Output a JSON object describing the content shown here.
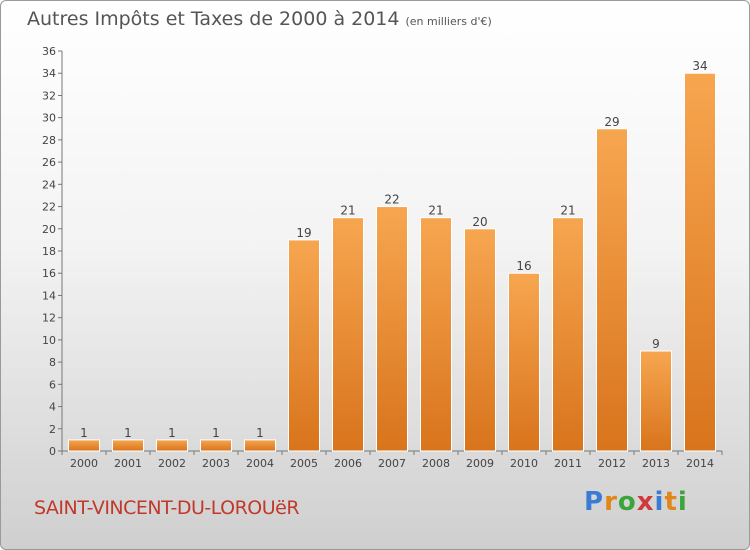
{
  "header": {
    "title": "Autres Impôts et Taxes de 2000 à 2014",
    "subtitle": "(en milliers d'€)"
  },
  "footer": {
    "commune": "SAINT-VINCENT-DU-LOROUëR",
    "logo_letters": [
      "P",
      "r",
      "o",
      "x",
      "i",
      "t",
      "i"
    ],
    "logo_colors": [
      "#3a7bd5",
      "#e0861a",
      "#3aa53a",
      "#d13a3a",
      "#3a7bd5",
      "#e0861a",
      "#3aa53a"
    ]
  },
  "colors": {
    "bar_light": "#f7a650",
    "bar_dark": "#d8741c",
    "title": "#555555",
    "commune": "#c0392b"
  },
  "chart_data": {
    "type": "bar",
    "title": "Autres Impôts et Taxes de 2000 à 2014",
    "subtitle": "(en milliers d'€)",
    "categories": [
      "2000",
      "2001",
      "2002",
      "2003",
      "2004",
      "2005",
      "2006",
      "2007",
      "2008",
      "2009",
      "2010",
      "2011",
      "2012",
      "2013",
      "2014"
    ],
    "values": [
      1,
      1,
      1,
      1,
      1,
      19,
      21,
      22,
      21,
      20,
      16,
      21,
      29,
      9,
      34
    ],
    "ylim": [
      0,
      36
    ],
    "yticks": [
      0,
      2,
      4,
      6,
      8,
      10,
      12,
      14,
      16,
      18,
      20,
      22,
      24,
      26,
      28,
      30,
      32,
      34,
      36
    ],
    "grid": false,
    "xlabel": "",
    "ylabel": ""
  }
}
